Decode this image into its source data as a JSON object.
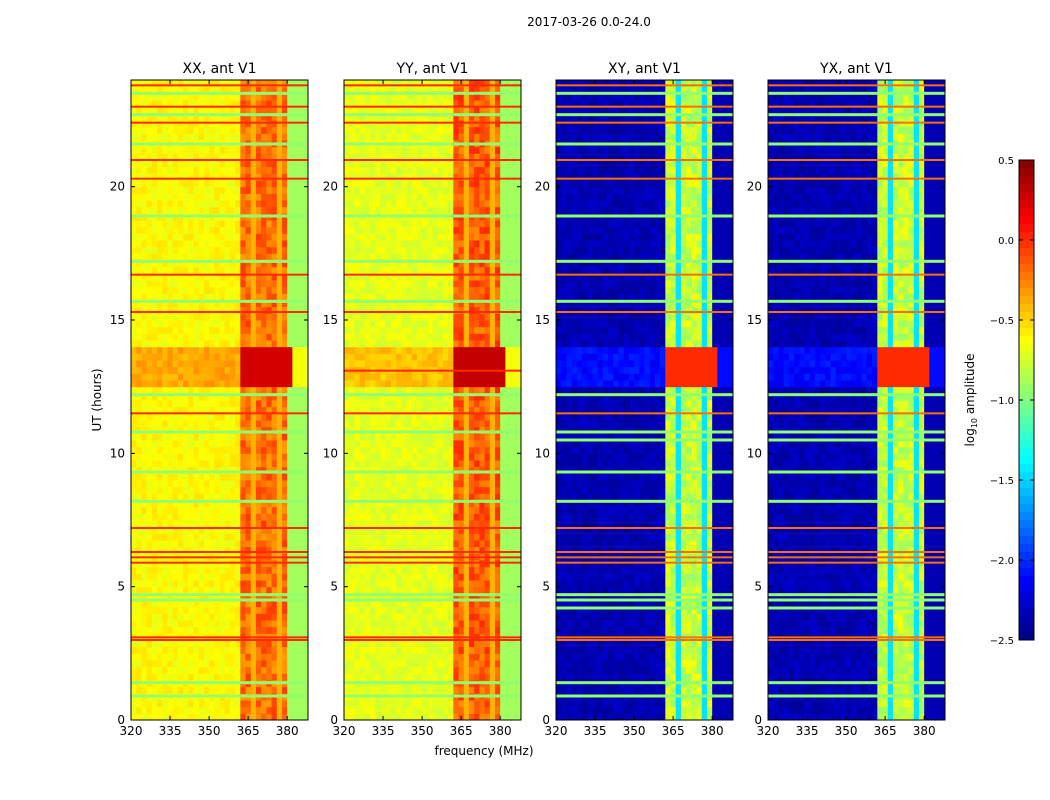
{
  "chart_data": {
    "type": "heatmap",
    "suptitle": "2017-03-26 0.0-24.0",
    "xlabel": "frequency (MHz)",
    "ylabel": "UT (hours)",
    "xlim": [
      320,
      388
    ],
    "ylim": [
      0,
      24
    ],
    "xticks": [
      320,
      335,
      350,
      365,
      380
    ],
    "yticks": [
      0,
      5,
      10,
      15,
      20
    ],
    "panels": [
      {
        "title": "XX, ant V1",
        "base": -0.62,
        "band": -0.25,
        "block": -0.05,
        "flag_level": 0.0,
        "flag_hours": [
          23.8,
          23.0,
          22.4,
          21.0,
          20.3,
          16.7,
          15.3,
          11.5,
          7.2,
          6.3,
          6.1,
          5.9,
          3.1,
          3.0
        ],
        "low_hours": [
          23.5,
          22.7,
          21.6,
          18.9,
          17.2,
          15.7,
          12.2,
          10.8,
          9.3,
          8.2,
          4.7,
          4.5,
          1.4,
          0.9
        ]
      },
      {
        "title": "YY, ant V1",
        "base": -0.7,
        "band": -0.2,
        "block": 0.0,
        "flag_level": 0.0,
        "flag_hours": [
          23.8,
          23.0,
          22.4,
          21.0,
          20.3,
          16.7,
          15.3,
          13.1,
          11.5,
          7.2,
          6.3,
          6.1,
          5.9,
          3.1,
          3.0
        ],
        "low_hours": [
          23.5,
          22.7,
          21.6,
          18.9,
          17.2,
          15.7,
          12.2,
          10.8,
          9.3,
          8.2,
          4.7,
          4.5,
          1.4,
          0.9
        ]
      },
      {
        "title": "XY, ant V1",
        "base": -2.35,
        "band": -0.85,
        "block": -0.3,
        "flag_level": -0.2,
        "flag_hours": [
          23.8,
          23.0,
          22.4,
          21.0,
          20.3,
          16.7,
          15.3,
          11.5,
          7.2,
          6.3,
          6.1,
          5.9,
          3.1,
          3.0
        ],
        "low_hours": [
          23.5,
          22.7,
          21.6,
          18.9,
          17.2,
          15.7,
          12.2,
          10.8,
          10.5,
          9.3,
          8.2,
          4.7,
          4.5,
          4.2,
          1.4,
          0.9
        ]
      },
      {
        "title": "YX, ant V1",
        "base": -2.35,
        "band": -0.85,
        "block": -0.3,
        "flag_level": -0.2,
        "flag_hours": [
          23.8,
          23.0,
          22.4,
          21.0,
          20.3,
          16.7,
          15.3,
          11.5,
          7.2,
          6.3,
          6.1,
          5.9,
          3.1,
          3.0
        ],
        "low_hours": [
          23.5,
          22.7,
          21.6,
          18.9,
          17.2,
          15.7,
          12.2,
          10.8,
          10.5,
          9.3,
          8.2,
          4.7,
          4.5,
          4.2,
          1.4,
          0.9
        ]
      }
    ],
    "band_range_mhz": [
      362,
      382
    ],
    "block_hours": [
      12.5,
      14.0
    ],
    "colorbar": {
      "label": "log10 amplitude",
      "label_main": "log",
      "label_sub": "10",
      "label_rest": " amplitude",
      "range": [
        -2.5,
        0.5
      ],
      "ticks": [
        "0.5",
        "0.0",
        "−0.5",
        "−1.0",
        "−1.5",
        "−2.0",
        "−2.5"
      ],
      "tick_values": [
        0.5,
        0.0,
        -0.5,
        -1.0,
        -1.5,
        -2.0,
        -2.5
      ],
      "colormap": "jet"
    }
  }
}
